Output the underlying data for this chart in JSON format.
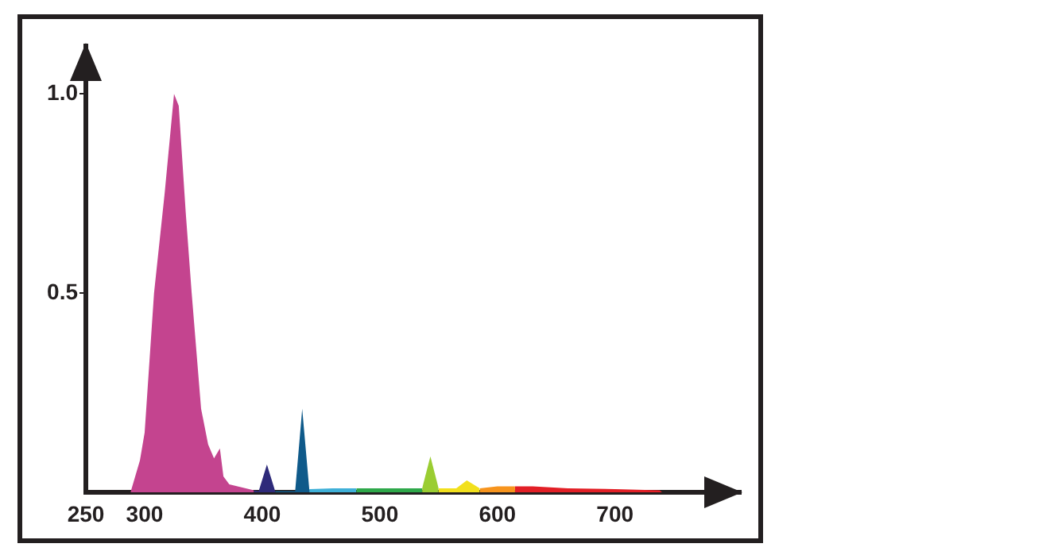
{
  "chart_data": {
    "type": "area",
    "series": [
      {
        "color": "#c4448f",
        "x": [
          288,
          296,
          300,
          308,
          317,
          325,
          329,
          335,
          340,
          348,
          354,
          359,
          364,
          367,
          372,
          393
        ],
        "values": [
          0,
          0.08,
          0.15,
          0.5,
          0.75,
          1.0,
          0.97,
          0.7,
          0.5,
          0.21,
          0.12,
          0.085,
          0.11,
          0.04,
          0.02,
          0.005
        ]
      },
      {
        "color": "#2e2a7a",
        "x": [
          393,
          397,
          404,
          411
        ],
        "values": [
          0.005,
          0.003,
          0.07,
          0.003
        ]
      },
      {
        "color": "#0f5a8a",
        "x": [
          411,
          428,
          434,
          440
        ],
        "values": [
          0.003,
          0.003,
          0.21,
          0.008
        ]
      },
      {
        "color": "#3fb0d8",
        "x": [
          440,
          460,
          480
        ],
        "values": [
          0.008,
          0.01,
          0.01
        ]
      },
      {
        "color": "#2ea84a",
        "x": [
          480,
          510,
          536
        ],
        "values": [
          0.01,
          0.01,
          0.01
        ]
      },
      {
        "color": "#9acd32",
        "x": [
          536,
          543,
          550
        ],
        "values": [
          0.01,
          0.09,
          0.01
        ]
      },
      {
        "color": "#f2e01c",
        "x": [
          550,
          565,
          574,
          585
        ],
        "values": [
          0.01,
          0.01,
          0.03,
          0.01
        ]
      },
      {
        "color": "#f7941d",
        "x": [
          585,
          600,
          615
        ],
        "values": [
          0.01,
          0.015,
          0.015
        ]
      },
      {
        "color": "#e21f26",
        "x": [
          615,
          630,
          660,
          700,
          738,
          740
        ],
        "values": [
          0.015,
          0.015,
          0.01,
          0.008,
          0.005,
          0
        ]
      }
    ],
    "xlim": [
      250,
      807
    ],
    "xticks": [
      250,
      300,
      400,
      500,
      600,
      700
    ],
    "ylim": [
      0,
      1.12
    ],
    "yticks": [
      {
        "value": 0.5,
        "label": "0.5"
      },
      {
        "value": 1,
        "label": "1.0"
      }
    ],
    "grid": false,
    "legend": false
  }
}
